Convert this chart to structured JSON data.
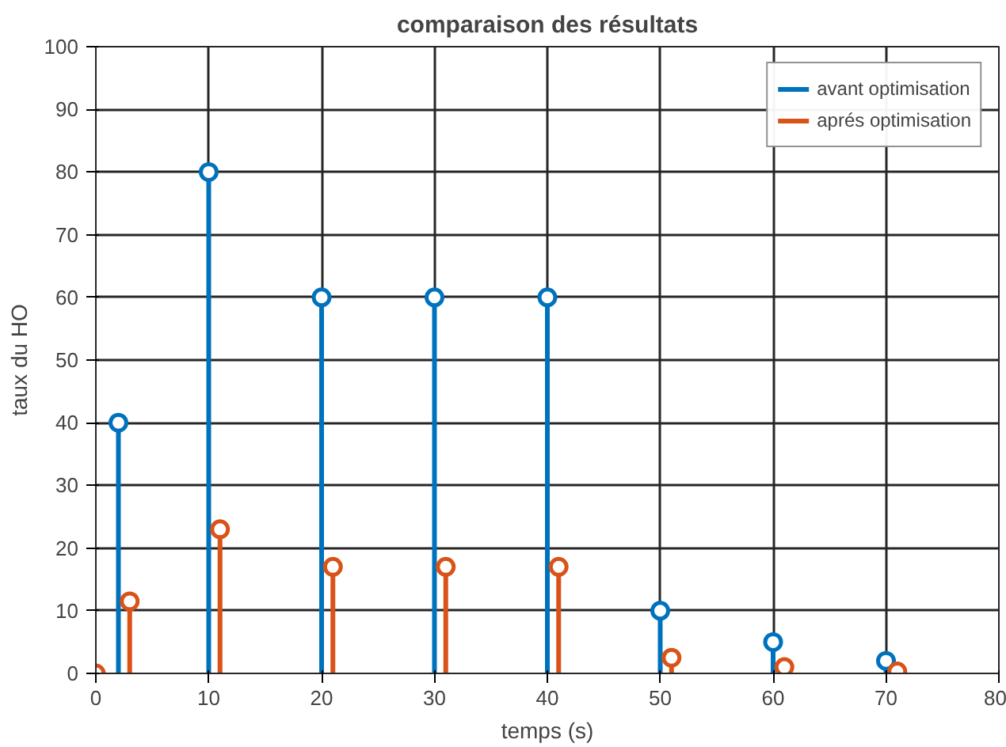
{
  "chart_data": {
    "type": "lollipop",
    "title": "comparaison des résultats",
    "xlabel": "temps (s)",
    "ylabel": "taux du HO",
    "xlim": [
      0,
      80
    ],
    "xticks": [
      0,
      10,
      20,
      30,
      40,
      50,
      60,
      70,
      80
    ],
    "ylim": [
      0,
      100
    ],
    "yticks": [
      0,
      10,
      20,
      30,
      40,
      50,
      60,
      70,
      80,
      90,
      100
    ],
    "grid": true,
    "legend": "top right",
    "marker": "circle",
    "series": [
      {
        "name": "avant optimisation",
        "color": "#0072bd",
        "x": [
          2,
          10,
          20,
          30,
          40,
          50,
          60,
          70
        ],
        "values": [
          40,
          80,
          60,
          60,
          60,
          10,
          5,
          2
        ]
      },
      {
        "name": "aprés optimisation",
        "color": "#d95319",
        "x": [
          0,
          3,
          11,
          21,
          31,
          41,
          51,
          61,
          71
        ],
        "values": [
          0,
          11.5,
          23,
          17,
          17,
          17,
          2.5,
          1,
          0.3
        ]
      }
    ]
  }
}
